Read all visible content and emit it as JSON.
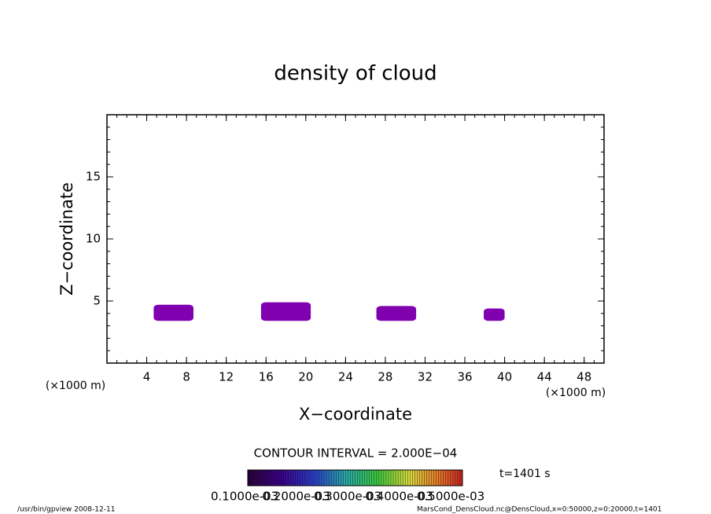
{
  "chart_data": {
    "type": "contour",
    "title": "density of cloud",
    "x_label": "X−coordinate",
    "y_label": "Z−coordinate",
    "x_unit": "(×1000 m)",
    "y_unit": "(×1000 m)",
    "xlim": [
      0,
      50
    ],
    "xticks": [
      4,
      8,
      12,
      16,
      20,
      24,
      28,
      32,
      36,
      40,
      44,
      48
    ],
    "ylim": [
      0,
      20
    ],
    "yticks": [
      5,
      10,
      15
    ],
    "color": "#8000b0",
    "regions": [
      {
        "x": [
          4.7,
          8.7
        ],
        "z": [
          3.4,
          4.7
        ]
      },
      {
        "x": [
          15.5,
          20.5
        ],
        "z": [
          3.4,
          4.9
        ]
      },
      {
        "x": [
          27.1,
          31.1
        ],
        "z": [
          3.4,
          4.6
        ]
      },
      {
        "x": [
          37.9,
          40.0
        ],
        "z": [
          3.4,
          4.4
        ]
      }
    ],
    "contour_interval": "CONTOUR INTERVAL = 2.000E−04",
    "time_label": "t=1401 s",
    "colorbar_ticks": [
      {
        "value": 0.0001,
        "label": "0.1000e-03"
      },
      {
        "value": 0.0002,
        "label": "0.2000e-03"
      },
      {
        "value": 0.0003,
        "label": "0.3000e-03"
      },
      {
        "value": 0.0004,
        "label": "0.4000e-03"
      },
      {
        "value": 0.0005,
        "label": "0.5000e-03"
      }
    ],
    "footer_left": "/usr/bin/gpview   2008-12-11",
    "footer_right": "MarsCond_DensCloud.nc@DensCloud,x=0:50000,z=0:20000,t=1401"
  }
}
